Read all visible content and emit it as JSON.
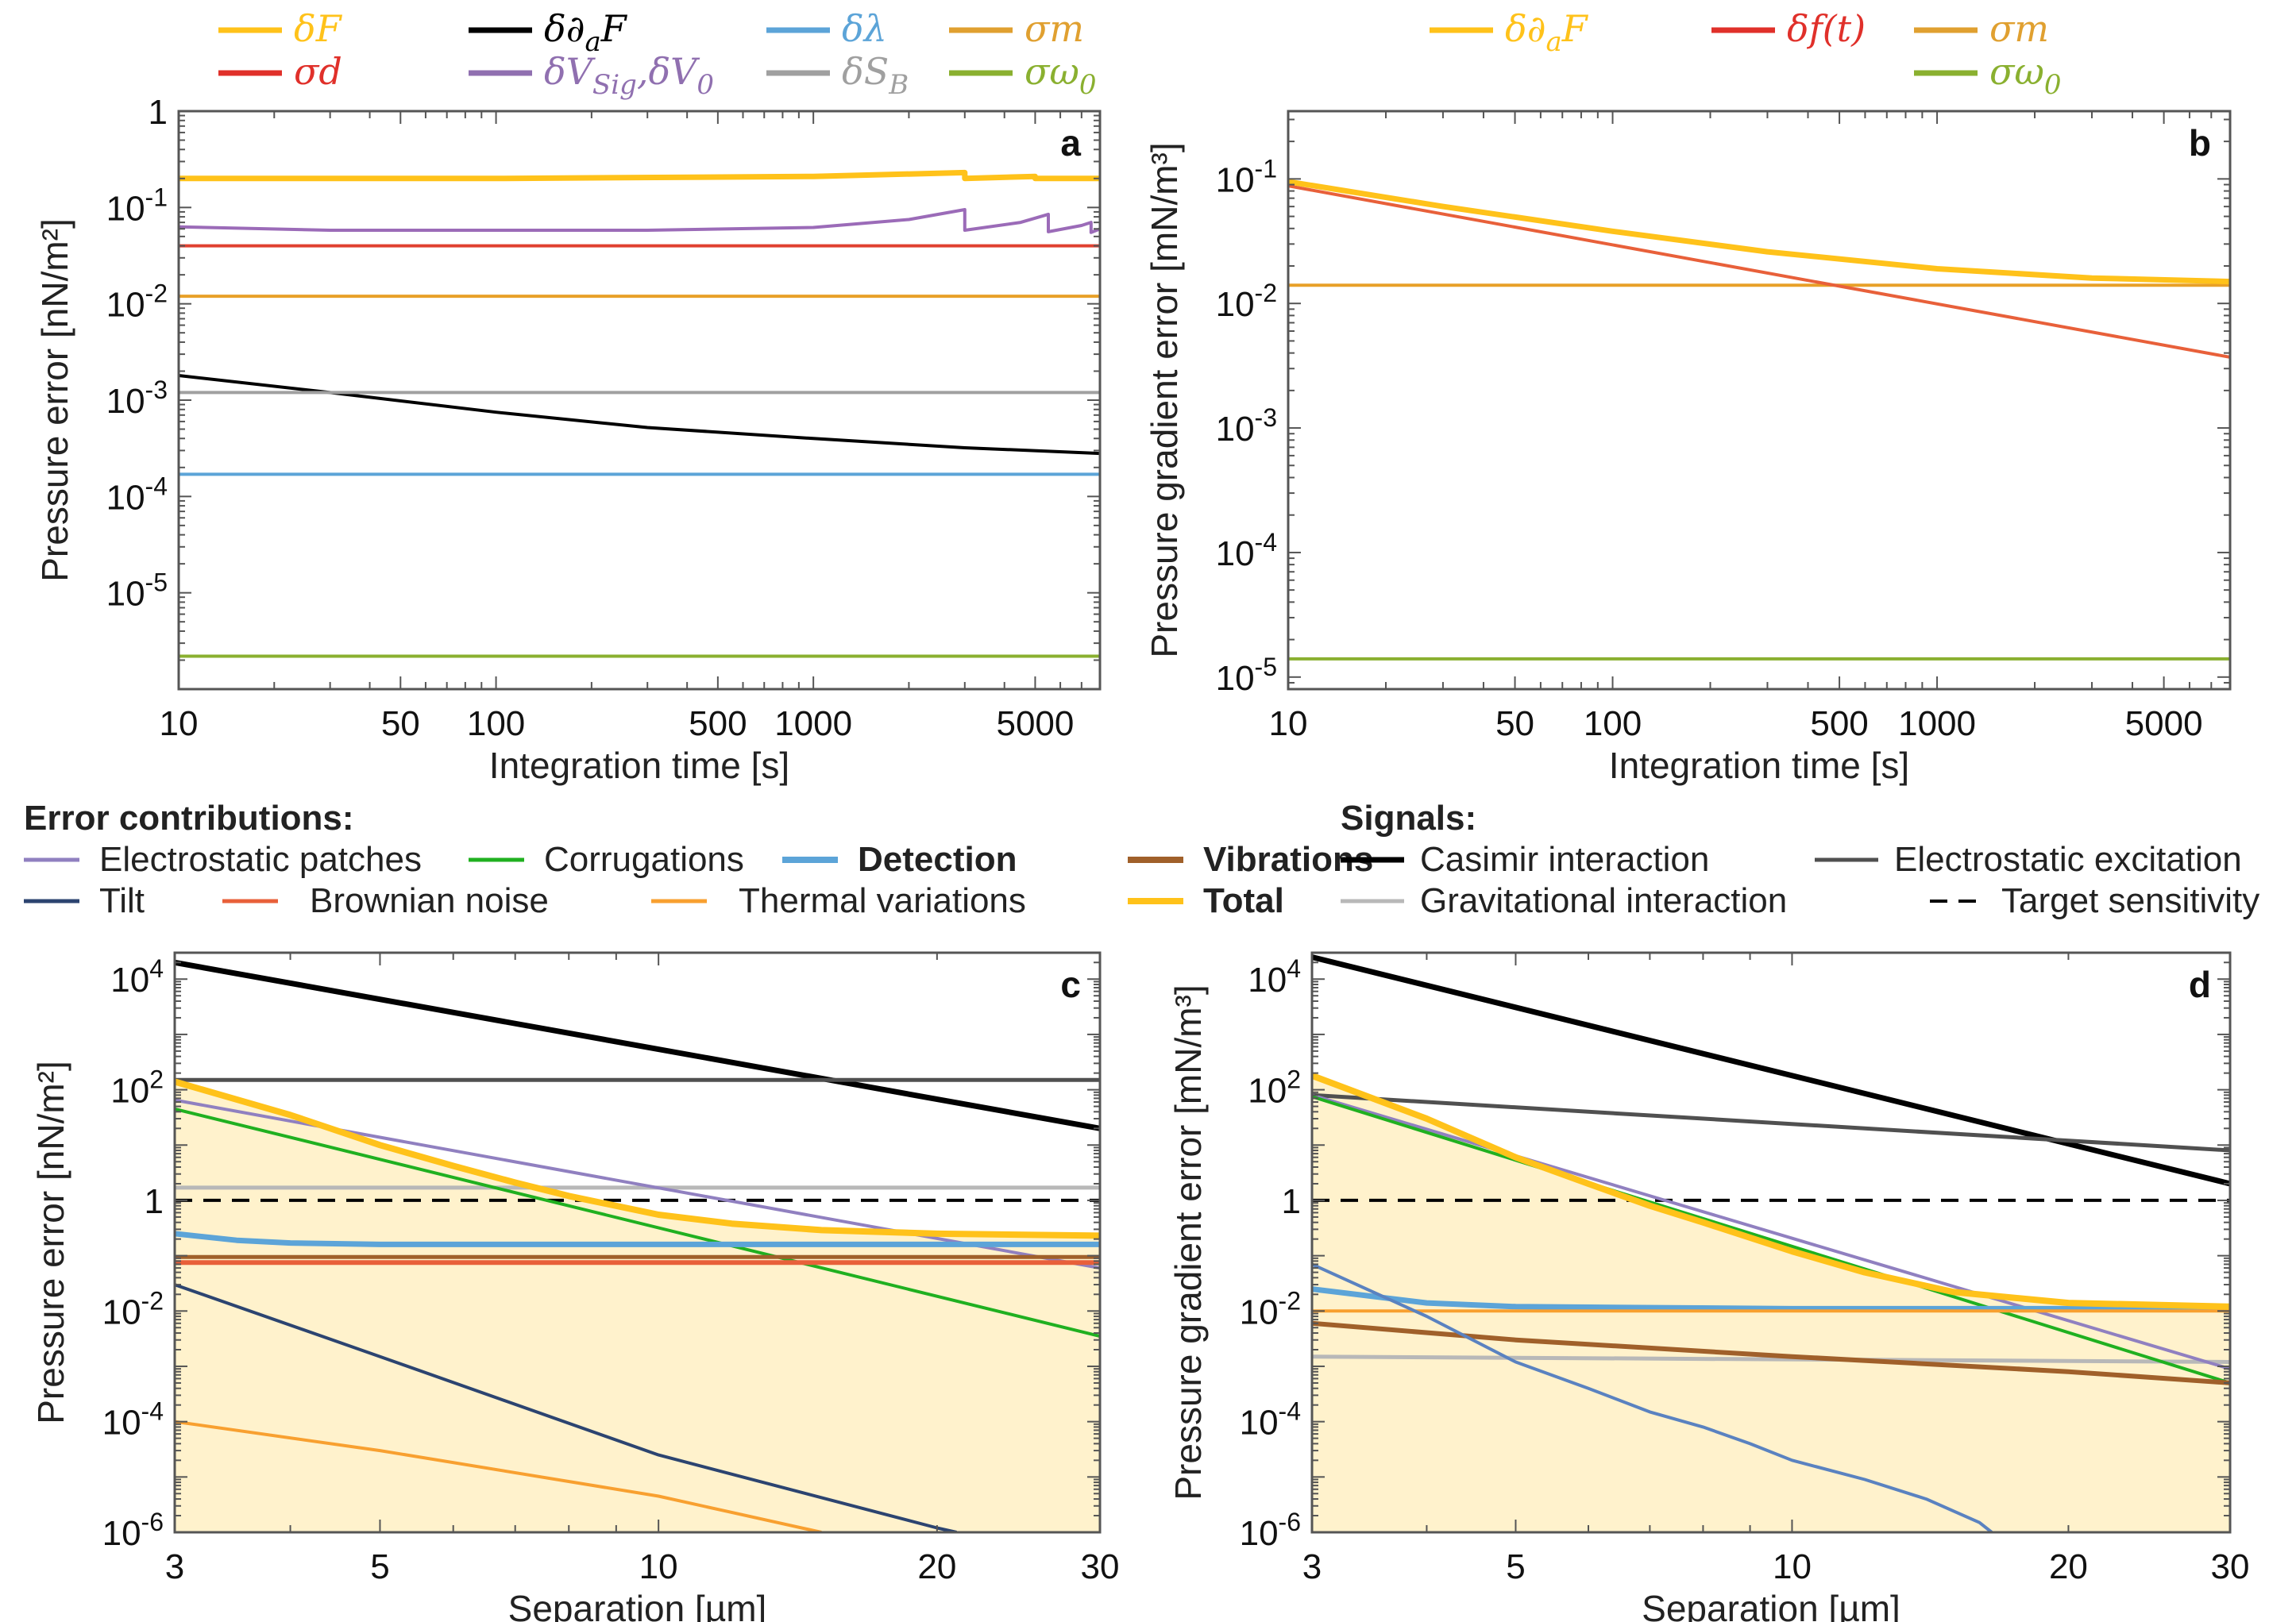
{
  "chart_data": [
    {
      "id": "a",
      "type": "line",
      "panel_label": "a",
      "xlabel": "Integration time [s]",
      "ylabel": "Pressure error [nN/m²]",
      "xscale": "log",
      "yscale": "log",
      "xlim": [
        10,
        8000
      ],
      "ylim": [
        1e-06,
        1
      ],
      "xticks": [
        10,
        50,
        100,
        500,
        1000,
        5000
      ],
      "xtick_labels": [
        "10",
        "50",
        "100",
        "500",
        "1000",
        "5000"
      ],
      "yticks": [
        1,
        0.1,
        0.01,
        0.001,
        0.0001,
        1e-05
      ],
      "ytick_labels": [
        {
          "base": "1",
          "exp": ""
        },
        {
          "base": "10",
          "exp": "-1"
        },
        {
          "base": "10",
          "exp": "-2"
        },
        {
          "base": "10",
          "exp": "-3"
        },
        {
          "base": "10",
          "exp": "-4"
        },
        {
          "base": "10",
          "exp": "-5"
        }
      ],
      "legend": [
        {
          "label": "δF",
          "color": "#FFC21A",
          "row": 0,
          "col": 0
        },
        {
          "label": "δ∂aF",
          "color": "#000000",
          "row": 0,
          "col": 1
        },
        {
          "label": "δλ",
          "color": "#5CA4D8",
          "row": 0,
          "col": 2
        },
        {
          "label": "σm",
          "color": "#E0A030",
          "row": 0,
          "col": 3
        },
        {
          "label": "σd",
          "color": "#E0302A",
          "row": 1,
          "col": 0
        },
        {
          "label": "δVSig,δV0",
          "color": "#9070B0",
          "row": 1,
          "col": 1
        },
        {
          "label": "δSB",
          "color": "#A0A0A0",
          "row": 1,
          "col": 2
        },
        {
          "label": "σω0",
          "color": "#8AB030",
          "row": 1,
          "col": 3
        }
      ],
      "series": [
        {
          "name": "δF",
          "color": "#FFC21A",
          "width": 7,
          "x": [
            10,
            100,
            1000,
            3000,
            3000,
            5000,
            5000,
            8000
          ],
          "y": [
            0.2,
            0.2,
            0.21,
            0.23,
            0.2,
            0.21,
            0.2,
            0.2
          ]
        },
        {
          "name": "δVSig,δV0",
          "color": "#9B6BB8",
          "width": 4,
          "x": [
            10,
            30,
            100,
            300,
            1000,
            2000,
            3000,
            3000,
            4500,
            5500,
            5500,
            7000,
            7500,
            7500,
            8000
          ],
          "y": [
            0.063,
            0.058,
            0.058,
            0.058,
            0.062,
            0.075,
            0.095,
            0.058,
            0.07,
            0.085,
            0.056,
            0.065,
            0.07,
            0.055,
            0.06
          ]
        },
        {
          "name": "σd",
          "color": "#E04030",
          "width": 4,
          "x": [
            10,
            8000
          ],
          "y": [
            0.04,
            0.04
          ]
        },
        {
          "name": "σm",
          "color": "#E8A028",
          "width": 4,
          "x": [
            10,
            8000
          ],
          "y": [
            0.012,
            0.012
          ]
        },
        {
          "name": "δ∂aF",
          "color": "#000000",
          "width": 4,
          "x": [
            10,
            30,
            100,
            300,
            1000,
            3000,
            8000
          ],
          "y": [
            0.0018,
            0.0012,
            0.00075,
            0.00052,
            0.0004,
            0.00032,
            0.00028
          ]
        },
        {
          "name": "δSB",
          "color": "#A0A0A0",
          "width": 4,
          "x": [
            10,
            8000
          ],
          "y": [
            0.0012,
            0.0012
          ]
        },
        {
          "name": "δλ",
          "color": "#5CA4D8",
          "width": 4,
          "x": [
            10,
            8000
          ],
          "y": [
            0.00017,
            0.00017
          ]
        },
        {
          "name": "σω0",
          "color": "#8AB030",
          "width": 4,
          "x": [
            10,
            8000
          ],
          "y": [
            2.2e-06,
            2.2e-06
          ]
        }
      ]
    },
    {
      "id": "b",
      "type": "line",
      "panel_label": "b",
      "xlabel": "Integration time [s]",
      "ylabel": "Pressure gradient error [mN/m³]",
      "xscale": "log",
      "yscale": "log",
      "xlim": [
        10,
        8000
      ],
      "ylim": [
        8e-06,
        0.35
      ],
      "xticks": [
        10,
        50,
        100,
        500,
        1000,
        5000
      ],
      "xtick_labels": [
        "10",
        "50",
        "100",
        "500",
        "1000",
        "5000"
      ],
      "yticks": [
        0.1,
        0.01,
        0.001,
        0.0001,
        1e-05
      ],
      "ytick_labels": [
        {
          "base": "10",
          "exp": "-1"
        },
        {
          "base": "10",
          "exp": "-2"
        },
        {
          "base": "10",
          "exp": "-3"
        },
        {
          "base": "10",
          "exp": "-4"
        },
        {
          "base": "10",
          "exp": "-5"
        }
      ],
      "legend": [
        {
          "label": "δ∂aF",
          "color": "#FFC21A",
          "row": 0,
          "col": 0
        },
        {
          "label": "δf(t)",
          "color": "#E0302A",
          "row": 0,
          "col": 1
        },
        {
          "label": "σm",
          "color": "#E0A030",
          "row": 0,
          "col": 2
        },
        {
          "label": "σω0",
          "color": "#8AB030",
          "row": 1,
          "col": 2
        }
      ],
      "series": [
        {
          "name": "σm",
          "color": "#E8A028",
          "width": 4,
          "x": [
            10,
            8000
          ],
          "y": [
            0.014,
            0.014
          ]
        },
        {
          "name": "δf(t)",
          "color": "#E8603A",
          "width": 4,
          "x": [
            10,
            8000
          ],
          "y": [
            0.088,
            0.0037
          ]
        },
        {
          "name": "δ∂aF",
          "color": "#FFC21A",
          "width": 7,
          "x": [
            10,
            30,
            100,
            300,
            1000,
            3000,
            8000
          ],
          "y": [
            0.095,
            0.06,
            0.038,
            0.026,
            0.019,
            0.016,
            0.015
          ]
        },
        {
          "name": "σω0",
          "color": "#8AB030",
          "width": 4,
          "x": [
            10,
            8000
          ],
          "y": [
            1.4e-05,
            1.4e-05
          ]
        }
      ]
    },
    {
      "id": "c",
      "type": "line",
      "panel_label": "c",
      "xlabel": "Separation [µm]",
      "ylabel": "Pressure error [nN/m²]",
      "xscale": "log",
      "yscale": "log",
      "xlim": [
        3,
        30
      ],
      "ylim": [
        1e-06,
        30000
      ],
      "xticks": [
        3,
        5,
        10,
        20,
        30
      ],
      "xtick_labels": [
        "3",
        "5",
        "10",
        "20",
        "30"
      ],
      "yticks": [
        10000,
        100,
        1,
        0.01,
        0.0001,
        1e-06
      ],
      "ytick_labels": [
        {
          "base": "10",
          "exp": "4"
        },
        {
          "base": "10",
          "exp": "2"
        },
        {
          "base": "1",
          "exp": ""
        },
        {
          "base": "10",
          "exp": "-2"
        },
        {
          "base": "10",
          "exp": "-4"
        },
        {
          "base": "10",
          "exp": "-6"
        }
      ],
      "fill_series": "Total",
      "series": [
        {
          "name": "Casimir interaction",
          "color": "#000000",
          "width": 7,
          "x": [
            3,
            30
          ],
          "y": [
            20000,
            20
          ]
        },
        {
          "name": "Electrostatic excitation",
          "color": "#505050",
          "width": 5,
          "x": [
            3,
            30
          ],
          "y": [
            150,
            150
          ]
        },
        {
          "name": "Gravitational interaction",
          "color": "#B8B8B8",
          "width": 5,
          "x": [
            3,
            30
          ],
          "y": [
            1.7,
            1.7
          ]
        },
        {
          "name": "Target sensitivity",
          "color": "#000000",
          "width": 4,
          "dash": "22,14",
          "x": [
            3,
            30
          ],
          "y": [
            1,
            1
          ]
        },
        {
          "name": "Electrostatic patches",
          "color": "#9080C0",
          "width": 4,
          "x": [
            3,
            30
          ],
          "y": [
            65,
            0.06
          ]
        },
        {
          "name": "Corrugations",
          "color": "#20B020",
          "width": 4,
          "x": [
            3,
            30
          ],
          "y": [
            45,
            0.0035
          ]
        },
        {
          "name": "Detection",
          "color": "#5CA4D8",
          "width": 7,
          "x": [
            3,
            3.5,
            4,
            5,
            10,
            30
          ],
          "y": [
            0.25,
            0.19,
            0.17,
            0.16,
            0.16,
            0.16
          ]
        },
        {
          "name": "Brownian noise",
          "color": "#E8603A",
          "width": 6,
          "x": [
            3,
            30
          ],
          "y": [
            0.075,
            0.075
          ]
        },
        {
          "name": "Vibrations",
          "color": "#A0602A",
          "width": 5,
          "x": [
            3,
            30
          ],
          "y": [
            0.095,
            0.095
          ]
        },
        {
          "name": "Total",
          "color": "#FFC21A",
          "width": 8,
          "x": [
            3,
            4,
            5,
            6,
            7,
            8,
            10,
            12,
            15,
            20,
            30
          ],
          "y": [
            140,
            35,
            10,
            4.2,
            2.1,
            1.2,
            0.55,
            0.38,
            0.29,
            0.25,
            0.23
          ]
        },
        {
          "name": "Tilt",
          "color": "#2C4470",
          "width": 4,
          "x": [
            3,
            5,
            10,
            20,
            21
          ],
          "y": [
            0.03,
            0.0015,
            2.5e-05,
            1.2e-06,
            1e-06
          ]
        },
        {
          "name": "Thermal variations",
          "color": "#F8A030",
          "width": 4,
          "x": [
            3,
            5,
            10,
            15
          ],
          "y": [
            0.0001,
            3e-05,
            4.5e-06,
            1e-06
          ]
        }
      ]
    },
    {
      "id": "d",
      "type": "line",
      "panel_label": "d",
      "xlabel": "Separation [µm]",
      "ylabel": "Pressure gradient error [mN/m³]",
      "xscale": "log",
      "yscale": "log",
      "xlim": [
        3,
        30
      ],
      "ylim": [
        1e-06,
        30000
      ],
      "xticks": [
        3,
        5,
        10,
        20,
        30
      ],
      "xtick_labels": [
        "3",
        "5",
        "10",
        "20",
        "30"
      ],
      "yticks": [
        10000,
        100,
        1,
        0.01,
        0.0001,
        1e-06
      ],
      "ytick_labels": [
        {
          "base": "10",
          "exp": "4"
        },
        {
          "base": "10",
          "exp": "2"
        },
        {
          "base": "1",
          "exp": ""
        },
        {
          "base": "10",
          "exp": "-2"
        },
        {
          "base": "10",
          "exp": "-4"
        },
        {
          "base": "10",
          "exp": "-6"
        }
      ],
      "fill_series": "Total",
      "series": [
        {
          "name": "Casimir interaction",
          "color": "#000000",
          "width": 7,
          "x": [
            3,
            30
          ],
          "y": [
            25000,
            2
          ]
        },
        {
          "name": "Electrostatic excitation",
          "color": "#505050",
          "width": 5,
          "x": [
            3,
            30
          ],
          "y": [
            80,
            8
          ]
        },
        {
          "name": "Gravitational interaction",
          "color": "#B8B8B8",
          "width": 5,
          "x": [
            3,
            30
          ],
          "y": [
            0.0015,
            0.0012
          ]
        },
        {
          "name": "Target sensitivity",
          "color": "#000000",
          "width": 4,
          "dash": "22,14",
          "x": [
            3,
            30
          ],
          "y": [
            1,
            1
          ]
        },
        {
          "name": "Electrostatic patches",
          "color": "#9080C0",
          "width": 4,
          "x": [
            3,
            30
          ],
          "y": [
            80,
            0.0009
          ]
        },
        {
          "name": "Corrugations",
          "color": "#20B020",
          "width": 4,
          "x": [
            3,
            30
          ],
          "y": [
            75,
            0.0005
          ]
        },
        {
          "name": "Detection",
          "color": "#5CA4D8",
          "width": 7,
          "x": [
            3,
            4,
            5,
            10,
            30
          ],
          "y": [
            0.025,
            0.014,
            0.012,
            0.011,
            0.011
          ]
        },
        {
          "name": "Thermal variations",
          "color": "#F8A030",
          "width": 4,
          "x": [
            3,
            30
          ],
          "y": [
            0.01,
            0.01
          ]
        },
        {
          "name": "Vibrations",
          "color": "#A0602A",
          "width": 6,
          "x": [
            3,
            5,
            10,
            20,
            30
          ],
          "y": [
            0.006,
            0.003,
            0.0015,
            0.0008,
            0.0005
          ]
        },
        {
          "name": "Total",
          "color": "#FFC21A",
          "width": 8,
          "x": [
            3,
            4,
            5,
            6,
            7,
            8,
            10,
            12,
            15,
            20,
            30
          ],
          "y": [
            180,
            30,
            6,
            2,
            0.8,
            0.4,
            0.12,
            0.05,
            0.022,
            0.014,
            0.012
          ]
        },
        {
          "name": "Tilt",
          "color": "#5A82C0",
          "width": 4,
          "x": [
            3,
            4,
            5,
            6,
            7,
            8,
            9,
            10,
            12,
            14,
            16,
            16.5
          ],
          "y": [
            0.07,
            0.008,
            0.0012,
            0.0004,
            0.00015,
            8e-05,
            4e-05,
            2e-05,
            9e-06,
            4e-06,
            1.5e-06,
            1e-06
          ]
        }
      ]
    }
  ],
  "shared_legend": {
    "error_title": "Error contributions:",
    "signals_title": "Signals:",
    "items": [
      {
        "label": "Electrostatic patches",
        "color": "#9080C0",
        "bold": false,
        "width": 5
      },
      {
        "label": "Corrugations",
        "color": "#20B020",
        "bold": false,
        "width": 5
      },
      {
        "label": "Detection",
        "color": "#5CA4D8",
        "bold": true,
        "width": 8
      },
      {
        "label": "Vibrations",
        "color": "#A0602A",
        "bold": true,
        "width": 8
      },
      {
        "label": "Tilt",
        "color": "#2C4470",
        "bold": false,
        "width": 5
      },
      {
        "label": "Brownian noise",
        "color": "#E8603A",
        "bold": false,
        "width": 5
      },
      {
        "label": "Thermal variations",
        "color": "#F8A030",
        "bold": false,
        "width": 5
      },
      {
        "label": "Total",
        "color": "#FFC21A",
        "bold": true,
        "width": 8
      }
    ],
    "signals": [
      {
        "label": "Casimir interaction",
        "color": "#000000",
        "dash": false,
        "width": 7
      },
      {
        "label": "Electrostatic excitation",
        "color": "#505050",
        "dash": false,
        "width": 5
      },
      {
        "label": "Gravitational interaction",
        "color": "#B8B8B8",
        "dash": false,
        "width": 5
      },
      {
        "label": "Target sensitivity",
        "color": "#000000",
        "dash": true,
        "width": 4
      }
    ]
  }
}
